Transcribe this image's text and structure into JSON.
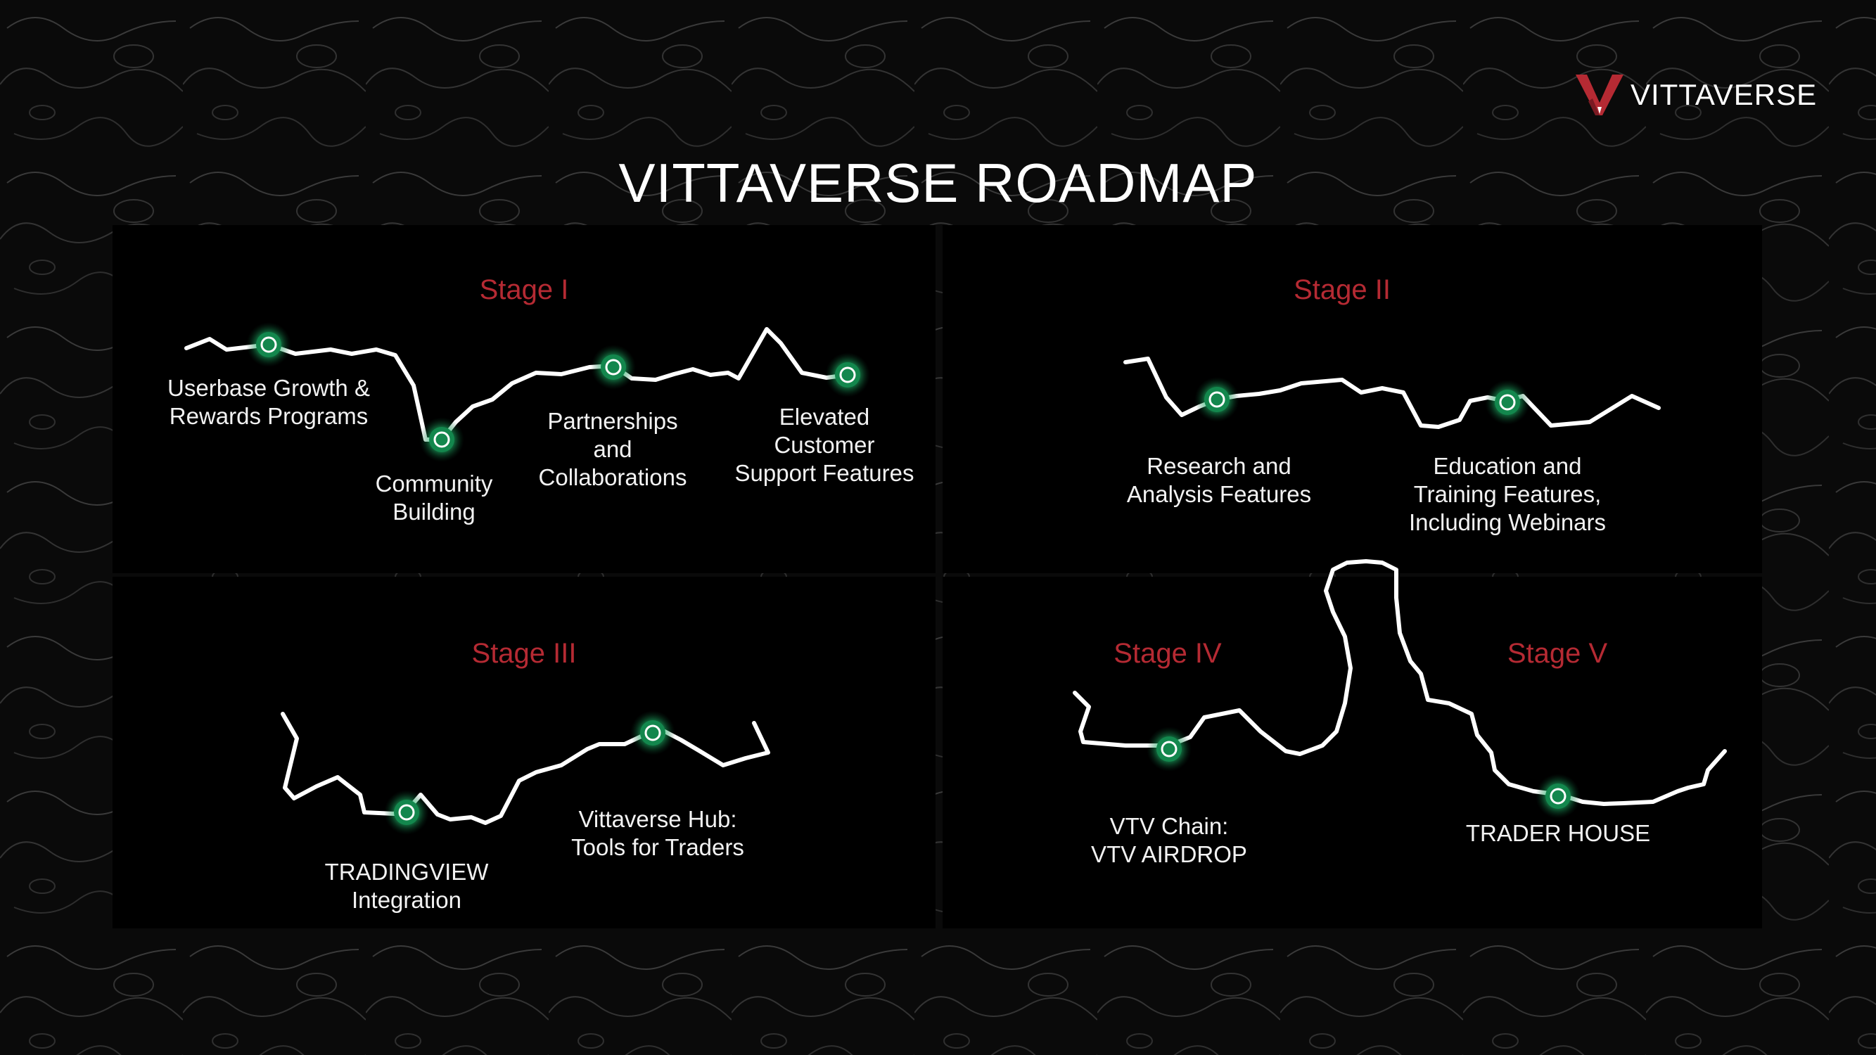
{
  "brand": {
    "name": "VITTAVERSE",
    "accent": "#b52a33",
    "node_color": "#2ee88a"
  },
  "title": "VITTAVERSE ROADMAP",
  "stages": [
    {
      "id": "stage-1",
      "label": "Stage I"
    },
    {
      "id": "stage-2",
      "label": "Stage II"
    },
    {
      "id": "stage-3",
      "label": "Stage III"
    },
    {
      "id": "stage-4",
      "label": "Stage IV"
    },
    {
      "id": "stage-5",
      "label": "Stage V"
    }
  ],
  "milestones": [
    {
      "id": "userbase",
      "stage": "Stage I",
      "text": "Userbase Growth &\nRewards Programs"
    },
    {
      "id": "community",
      "stage": "Stage I",
      "text": "Community\nBuilding"
    },
    {
      "id": "partnerships",
      "stage": "Stage I",
      "text": "Partnerships\nand\nCollaborations"
    },
    {
      "id": "support",
      "stage": "Stage I",
      "text": "Elevated\nCustomer\nSupport Features"
    },
    {
      "id": "research",
      "stage": "Stage II",
      "text": "Research and\nAnalysis Features"
    },
    {
      "id": "education",
      "stage": "Stage II",
      "text": "Education and\nTraining Features,\nIncluding Webinars"
    },
    {
      "id": "tradingview",
      "stage": "Stage III",
      "text": "TRADINGVIEW\nIntegration"
    },
    {
      "id": "hub",
      "stage": "Stage III",
      "text": "Vittaverse Hub:\nTools for Traders"
    },
    {
      "id": "vtv-chain",
      "stage": "Stage IV",
      "text": "VTV Chain:\nVTV AIRDROP"
    },
    {
      "id": "trader-house",
      "stage": "Stage V",
      "text": "TRADER HOUSE"
    }
  ]
}
